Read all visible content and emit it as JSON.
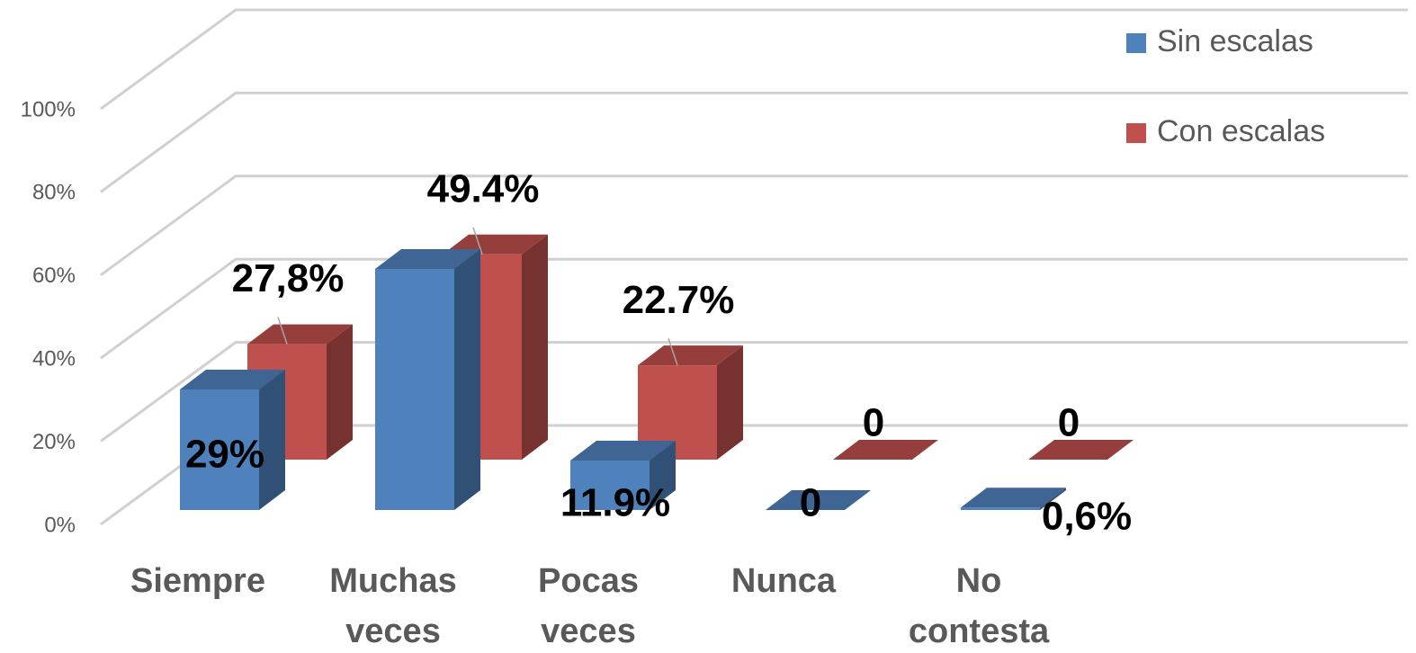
{
  "chart_data": {
    "type": "bar3d",
    "categories": [
      "Siempre",
      "Muchas veces",
      "Pocas veces",
      "Nunca",
      "No contesta"
    ],
    "series": [
      {
        "name": "Sin escalas",
        "color": "#4f81bd",
        "values": [
          29,
          58,
          11.9,
          0,
          0.6
        ],
        "value_labels": [
          "29%",
          null,
          "11.9%",
          "0",
          "0,6%"
        ]
      },
      {
        "name": "Con escalas",
        "color": "#c0504d",
        "values": [
          27.8,
          49.4,
          22.7,
          0,
          0
        ],
        "value_labels": [
          "27,8%",
          "49.4%",
          "22.7%",
          "0",
          "0"
        ]
      }
    ],
    "ylim": [
      0,
      100
    ],
    "yticks": [
      {
        "value": 0,
        "label": "0%"
      },
      {
        "value": 20,
        "label": "20%"
      },
      {
        "value": 40,
        "label": "40%"
      },
      {
        "value": 60,
        "label": "60%"
      },
      {
        "value": 80,
        "label": "80%"
      },
      {
        "value": 100,
        "label": "100%"
      }
    ],
    "grid": true,
    "legend": "top-right"
  }
}
